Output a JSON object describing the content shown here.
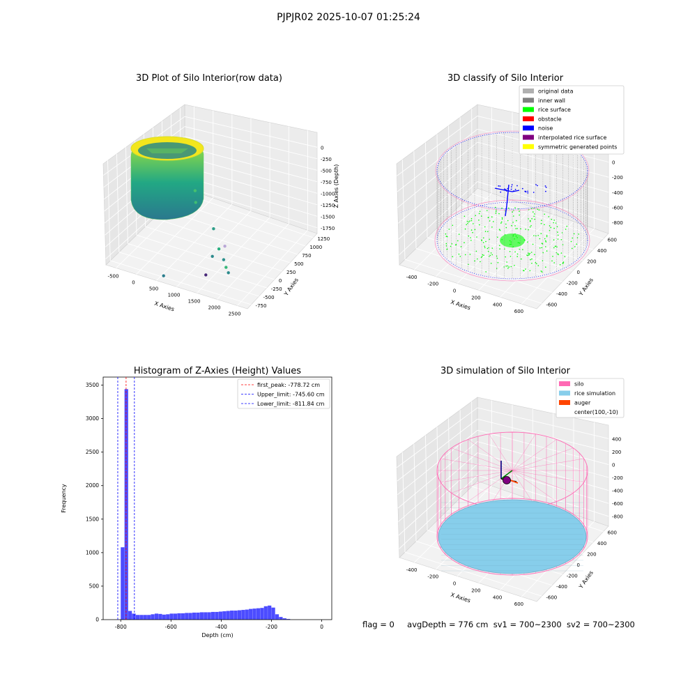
{
  "figure": {
    "suptitle": "PJPJR02 2025-10-07 01:25:24",
    "status": {
      "flag": "flag = 0",
      "avg_depth": "avgDepth = 776 cm",
      "sv1": "sv1 = 700~2300",
      "sv2": "sv2 = 700~2300"
    }
  },
  "colors": {
    "silo": "#ff69b4",
    "rice": "#87ceeb",
    "auger": "#ff4500",
    "original": "#b0b0b0",
    "inner_wall": "#808080",
    "rice_surface": "#00ff00",
    "obstacle": "#ff0000",
    "noise": "#0000ff",
    "interp": "#800080",
    "sym": "#ffff00",
    "hist": "#0000ff"
  },
  "chart_data": [
    {
      "id": "raw",
      "type": "scatter",
      "title": "3D Plot of Silo Interior(row data)",
      "xlabel": "X Axies",
      "ylabel": "Y Axies",
      "zlabel": "Z Axies (Depth)",
      "x_ticks": [
        "-500",
        "0",
        "500",
        "1000",
        "1500",
        "2000",
        "2500"
      ],
      "y_ticks": [
        "-750",
        "-500",
        "-250",
        "0",
        "250",
        "500",
        "750",
        "1000",
        "1250"
      ],
      "z_ticks": [
        "0",
        "-250",
        "-500",
        "-750",
        "-1000",
        "-1250",
        "-1500",
        "-1750"
      ],
      "xlim": [
        -700,
        2700
      ],
      "ylim": [
        -800,
        1350
      ],
      "zlim": [
        -1800,
        100
      ],
      "cylinder": {
        "cx": 0,
        "cy": 400,
        "r": 550,
        "z_top": 0,
        "z_bottom": -780
      },
      "outliers": [
        {
          "x": 500,
          "y": 300,
          "z": -700
        },
        {
          "x": 600,
          "y": 200,
          "z": -850
        },
        {
          "x": 1200,
          "y": 0,
          "z": -1100
        },
        {
          "x": 1500,
          "y": -200,
          "z": -1300
        },
        {
          "x": 1600,
          "y": -150,
          "z": -1250
        },
        {
          "x": 1700,
          "y": -300,
          "z": -1400
        },
        {
          "x": 1800,
          "y": -350,
          "z": -1500
        },
        {
          "x": 1900,
          "y": -400,
          "z": -1550
        },
        {
          "x": 1400,
          "y": -450,
          "z": -1700
        },
        {
          "x": 1600,
          "y": -500,
          "z": -1200
        },
        {
          "x": 600,
          "y": -700,
          "z": -1750
        }
      ]
    },
    {
      "id": "classify",
      "type": "scatter",
      "title": "3D classify of Silo Interior",
      "xlabel": "X Axies",
      "ylabel": "Y Axies",
      "zlabel": "Z Axies (Depth)",
      "x_ticks": [
        "-400",
        "-200",
        "0",
        "200",
        "400",
        "600"
      ],
      "y_ticks": [
        "-600",
        "-400",
        "-200",
        "0",
        "200",
        "400",
        "600"
      ],
      "z_ticks": [
        "200",
        "0",
        "-200",
        "-400",
        "-600",
        "-800"
      ],
      "xlim": [
        -550,
        750
      ],
      "ylim": [
        -650,
        700
      ],
      "zlim": [
        -900,
        250
      ],
      "cylinder": {
        "cx": 100,
        "cy": -10,
        "r": 560,
        "z_top": 0,
        "z_bottom": -780
      },
      "legend": [
        {
          "label": "original data",
          "color": "#b0b0b0"
        },
        {
          "label": "inner wall",
          "color": "#808080"
        },
        {
          "label": "rice surface",
          "color": "#00ff00"
        },
        {
          "label": "obstacle",
          "color": "#ff0000"
        },
        {
          "label": "noise",
          "color": "#0000ff"
        },
        {
          "label": "interpolated rice surface",
          "color": "#800080"
        },
        {
          "label": "symmetric generated points",
          "color": "#ffff00"
        }
      ]
    },
    {
      "id": "hist",
      "type": "bar",
      "title": "Histogram of Z-Axies (Height) Values",
      "xlabel": "Depth (cm)",
      "ylabel": "Frequency",
      "xlim": [
        -870,
        40
      ],
      "ylim": [
        0,
        3620
      ],
      "x_ticks": [
        -800,
        -600,
        -400,
        -200,
        0
      ],
      "y_ticks": [
        0,
        500,
        1000,
        1500,
        2000,
        2500,
        3000,
        3500
      ],
      "bin_start": -800,
      "bin_width": 15,
      "values": [
        1080,
        3440,
        130,
        90,
        70,
        70,
        70,
        70,
        80,
        90,
        85,
        75,
        80,
        90,
        90,
        95,
        95,
        100,
        100,
        105,
        105,
        110,
        110,
        110,
        115,
        115,
        120,
        125,
        130,
        135,
        135,
        140,
        145,
        150,
        160,
        165,
        170,
        175,
        200,
        210,
        180,
        80,
        40,
        20,
        10
      ],
      "lines": [
        {
          "label": "first_peak: -778.72 cm",
          "value": -778.72,
          "color": "#ff0000"
        },
        {
          "label": "Upper_limit: -745.60 cm",
          "value": -745.6,
          "color": "#0000ff"
        },
        {
          "label": "Lower_limit: -811.84 cm",
          "value": -811.84,
          "color": "#0000ff"
        }
      ]
    },
    {
      "id": "sim",
      "type": "scatter",
      "title": "3D simulation of Silo Interior",
      "xlabel": "X Axies",
      "ylabel": "Y Axies",
      "zlabel": "Z Axies (Depth)",
      "x_ticks": [
        "-400",
        "-200",
        "0",
        "200",
        "400",
        "600"
      ],
      "y_ticks": [
        "-600",
        "-400",
        "-200",
        "0",
        "200",
        "400",
        "600"
      ],
      "z_ticks": [
        "400",
        "200",
        "0",
        "-200",
        "-400",
        "-600",
        "-800"
      ],
      "xlim": [
        -550,
        750
      ],
      "ylim": [
        -650,
        700
      ],
      "zlim": [
        -900,
        500
      ],
      "cylinder": {
        "cx": 100,
        "cy": -10,
        "r": 560,
        "z_top": 0,
        "z_bottom": -780
      },
      "rice_depth": -776,
      "legend": [
        {
          "label": "silo",
          "color": "#ff69b4"
        },
        {
          "label": "rice simulation",
          "color": "#87ceeb"
        },
        {
          "label": "auger",
          "color": "#ff4500"
        },
        {
          "label": "center(100,-10)",
          "color": ""
        }
      ]
    }
  ]
}
